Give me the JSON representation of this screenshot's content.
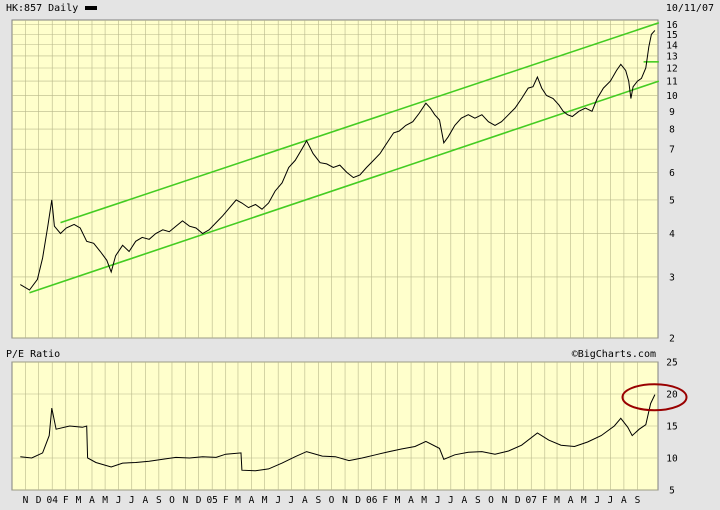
{
  "chart_data": [
    {
      "type": "line",
      "title": "HK:857 Daily",
      "date_label": "10/11/07",
      "y_scale": "log",
      "ylim": [
        2,
        16.5
      ],
      "y_ticks": [
        2,
        3,
        4,
        5,
        6,
        7,
        8,
        9,
        10,
        11,
        12,
        13,
        14,
        15,
        16
      ],
      "y_tick_labels": [
        "2",
        "3",
        "4",
        "5",
        "6",
        "7",
        "8",
        "9",
        "10",
        "11",
        "12",
        "13",
        "14",
        "15",
        "16"
      ],
      "grid": true,
      "colors": {
        "plot_bg": "#ffffcc",
        "grid": "#b7b78a",
        "price": "#000000",
        "channel": "#44cc22"
      },
      "series": [
        {
          "name": "HK:857",
          "points": [
            [
              "2003-10-20",
              2.85
            ],
            [
              "2003-11-10",
              2.75
            ],
            [
              "2003-11-28",
              2.95
            ],
            [
              "2003-12-10",
              3.4
            ],
            [
              "2003-12-22",
              4.2
            ],
            [
              "2003-12-31",
              5.0
            ],
            [
              "2004-01-06",
              4.2
            ],
            [
              "2004-01-20",
              4.0
            ],
            [
              "2004-02-02",
              4.15
            ],
            [
              "2004-02-20",
              4.25
            ],
            [
              "2004-03-05",
              4.15
            ],
            [
              "2004-03-20",
              3.8
            ],
            [
              "2004-04-05",
              3.75
            ],
            [
              "2004-04-20",
              3.55
            ],
            [
              "2004-05-05",
              3.35
            ],
            [
              "2004-05-15",
              3.1
            ],
            [
              "2004-05-25",
              3.45
            ],
            [
              "2004-06-10",
              3.7
            ],
            [
              "2004-06-25",
              3.55
            ],
            [
              "2004-07-10",
              3.8
            ],
            [
              "2004-07-25",
              3.9
            ],
            [
              "2004-08-10",
              3.85
            ],
            [
              "2004-08-25",
              4.0
            ],
            [
              "2004-09-10",
              4.1
            ],
            [
              "2004-09-25",
              4.05
            ],
            [
              "2004-10-10",
              4.2
            ],
            [
              "2004-10-25",
              4.35
            ],
            [
              "2004-11-10",
              4.2
            ],
            [
              "2004-11-25",
              4.15
            ],
            [
              "2004-12-10",
              4.0
            ],
            [
              "2004-12-25",
              4.1
            ],
            [
              "2005-01-10",
              4.3
            ],
            [
              "2005-01-25",
              4.5
            ],
            [
              "2005-02-10",
              4.75
            ],
            [
              "2005-02-25",
              5.0
            ],
            [
              "2005-03-10",
              4.9
            ],
            [
              "2005-03-25",
              4.75
            ],
            [
              "2005-04-10",
              4.85
            ],
            [
              "2005-04-25",
              4.7
            ],
            [
              "2005-05-10",
              4.9
            ],
            [
              "2005-05-25",
              5.3
            ],
            [
              "2005-06-10",
              5.6
            ],
            [
              "2005-06-25",
              6.2
            ],
            [
              "2005-07-10",
              6.5
            ],
            [
              "2005-07-25",
              7.0
            ],
            [
              "2005-08-05",
              7.4
            ],
            [
              "2005-08-20",
              6.8
            ],
            [
              "2005-09-05",
              6.4
            ],
            [
              "2005-09-20",
              6.35
            ],
            [
              "2005-10-05",
              6.2
            ],
            [
              "2005-10-20",
              6.3
            ],
            [
              "2005-11-05",
              6.0
            ],
            [
              "2005-11-20",
              5.8
            ],
            [
              "2005-12-05",
              5.9
            ],
            [
              "2005-12-20",
              6.2
            ],
            [
              "2006-01-05",
              6.5
            ],
            [
              "2006-01-20",
              6.8
            ],
            [
              "2006-02-05",
              7.3
            ],
            [
              "2006-02-20",
              7.8
            ],
            [
              "2006-03-05",
              7.9
            ],
            [
              "2006-03-20",
              8.2
            ],
            [
              "2006-04-05",
              8.4
            ],
            [
              "2006-04-20",
              8.9
            ],
            [
              "2006-05-05",
              9.5
            ],
            [
              "2006-05-15",
              9.2
            ],
            [
              "2006-05-25",
              8.8
            ],
            [
              "2006-06-05",
              8.5
            ],
            [
              "2006-06-15",
              7.3
            ],
            [
              "2006-06-25",
              7.6
            ],
            [
              "2006-07-10",
              8.2
            ],
            [
              "2006-07-25",
              8.6
            ],
            [
              "2006-08-10",
              8.8
            ],
            [
              "2006-08-25",
              8.6
            ],
            [
              "2006-09-10",
              8.8
            ],
            [
              "2006-09-25",
              8.4
            ],
            [
              "2006-10-10",
              8.2
            ],
            [
              "2006-10-25",
              8.4
            ],
            [
              "2006-11-10",
              8.8
            ],
            [
              "2006-11-25",
              9.2
            ],
            [
              "2006-12-10",
              9.8
            ],
            [
              "2006-12-25",
              10.5
            ],
            [
              "2007-01-05",
              10.6
            ],
            [
              "2007-01-15",
              11.3
            ],
            [
              "2007-01-25",
              10.5
            ],
            [
              "2007-02-05",
              10.0
            ],
            [
              "2007-02-20",
              9.8
            ],
            [
              "2007-03-05",
              9.4
            ],
            [
              "2007-03-15",
              9.0
            ],
            [
              "2007-03-25",
              8.8
            ],
            [
              "2007-04-05",
              8.7
            ],
            [
              "2007-04-20",
              9.0
            ],
            [
              "2007-05-05",
              9.2
            ],
            [
              "2007-05-20",
              9.0
            ],
            [
              "2007-06-01",
              9.8
            ],
            [
              "2007-06-15",
              10.5
            ],
            [
              "2007-07-01",
              11.0
            ],
            [
              "2007-07-15",
              11.8
            ],
            [
              "2007-07-25",
              12.3
            ],
            [
              "2007-08-05",
              11.8
            ],
            [
              "2007-08-12",
              11.0
            ],
            [
              "2007-08-17",
              9.8
            ],
            [
              "2007-08-22",
              10.6
            ],
            [
              "2007-09-01",
              11.0
            ],
            [
              "2007-09-10",
              11.2
            ],
            [
              "2007-09-20",
              12.0
            ],
            [
              "2007-09-27",
              13.8
            ],
            [
              "2007-10-03",
              15.0
            ],
            [
              "2007-10-11",
              15.4
            ]
          ]
        }
      ],
      "trendlines": [
        {
          "start": [
            "2004-01-20",
            4.3
          ],
          "end": [
            "2007-10-20",
            16.2
          ]
        },
        {
          "start": [
            "2003-11-10",
            2.7
          ],
          "end": [
            "2007-10-20",
            11.0
          ]
        },
        {
          "start": [
            "2007-09-15",
            12.5
          ],
          "end": [
            "2007-10-20",
            12.5
          ]
        }
      ]
    },
    {
      "type": "line",
      "title": "P/E Ratio",
      "watermark": "©BigCharts.com",
      "ylim": [
        5,
        25
      ],
      "y_ticks": [
        5,
        10,
        15,
        20,
        25
      ],
      "y_tick_labels": [
        "5",
        "10",
        "15",
        "20",
        "25"
      ],
      "grid": true,
      "annotation": {
        "shape": "ellipse",
        "color": "#990000",
        "center": [
          "2007-10-10",
          19.5
        ]
      },
      "series": [
        {
          "name": "P/E Ratio",
          "points": [
            [
              "2003-10-20",
              10.2
            ],
            [
              "2003-11-15",
              10.0
            ],
            [
              "2003-12-10",
              10.8
            ],
            [
              "2003-12-25",
              13.5
            ],
            [
              "2003-12-31",
              17.8
            ],
            [
              "2004-01-10",
              14.5
            ],
            [
              "2004-02-10",
              15.0
            ],
            [
              "2004-03-10",
              14.8
            ],
            [
              "2004-03-20",
              15.0
            ],
            [
              "2004-03-22",
              10.0
            ],
            [
              "2004-04-10",
              9.3
            ],
            [
              "2004-05-15",
              8.6
            ],
            [
              "2004-06-10",
              9.2
            ],
            [
              "2004-07-10",
              9.3
            ],
            [
              "2004-08-10",
              9.5
            ],
            [
              "2004-09-10",
              9.8
            ],
            [
              "2004-10-10",
              10.1
            ],
            [
              "2004-11-10",
              10.0
            ],
            [
              "2004-12-10",
              10.2
            ],
            [
              "2005-01-10",
              10.1
            ],
            [
              "2005-02-01",
              10.6
            ],
            [
              "2005-03-08",
              10.8
            ],
            [
              "2005-03-10",
              8.1
            ],
            [
              "2005-04-10",
              8.0
            ],
            [
              "2005-05-10",
              8.3
            ],
            [
              "2005-06-10",
              9.2
            ],
            [
              "2005-07-10",
              10.2
            ],
            [
              "2005-08-05",
              11.0
            ],
            [
              "2005-09-10",
              10.3
            ],
            [
              "2005-10-10",
              10.2
            ],
            [
              "2005-11-10",
              9.6
            ],
            [
              "2005-12-10",
              10.0
            ],
            [
              "2006-01-10",
              10.5
            ],
            [
              "2006-02-10",
              11.0
            ],
            [
              "2006-03-10",
              11.4
            ],
            [
              "2006-04-10",
              11.8
            ],
            [
              "2006-05-05",
              12.6
            ],
            [
              "2006-06-05",
              11.5
            ],
            [
              "2006-06-15",
              9.8
            ],
            [
              "2006-07-10",
              10.5
            ],
            [
              "2006-08-10",
              10.9
            ],
            [
              "2006-09-10",
              11.0
            ],
            [
              "2006-10-10",
              10.6
            ],
            [
              "2006-11-10",
              11.1
            ],
            [
              "2006-12-10",
              12.0
            ],
            [
              "2007-01-15",
              13.9
            ],
            [
              "2007-02-10",
              12.8
            ],
            [
              "2007-03-10",
              12.0
            ],
            [
              "2007-04-10",
              11.8
            ],
            [
              "2007-05-10",
              12.5
            ],
            [
              "2007-06-10",
              13.5
            ],
            [
              "2007-07-10",
              15.0
            ],
            [
              "2007-07-25",
              16.2
            ],
            [
              "2007-08-10",
              14.8
            ],
            [
              "2007-08-20",
              13.5
            ],
            [
              "2007-09-05",
              14.5
            ],
            [
              "2007-09-20",
              15.2
            ],
            [
              "2007-10-01",
              18.5
            ],
            [
              "2007-10-11",
              19.9
            ]
          ]
        }
      ]
    }
  ],
  "x_axis": {
    "domain": [
      "2003-10-01",
      "2007-10-18"
    ],
    "month_labels": [
      {
        "date": "2003-11-01",
        "label": "N"
      },
      {
        "date": "2003-12-01",
        "label": "D"
      },
      {
        "date": "2004-01-01",
        "label": "04"
      },
      {
        "date": "2004-02-01",
        "label": "F"
      },
      {
        "date": "2004-03-01",
        "label": "M"
      },
      {
        "date": "2004-04-01",
        "label": "A"
      },
      {
        "date": "2004-05-01",
        "label": "M"
      },
      {
        "date": "2004-06-01",
        "label": "J"
      },
      {
        "date": "2004-07-01",
        "label": "J"
      },
      {
        "date": "2004-08-01",
        "label": "A"
      },
      {
        "date": "2004-09-01",
        "label": "S"
      },
      {
        "date": "2004-10-01",
        "label": "O"
      },
      {
        "date": "2004-11-01",
        "label": "N"
      },
      {
        "date": "2004-12-01",
        "label": "D"
      },
      {
        "date": "2005-01-01",
        "label": "05"
      },
      {
        "date": "2005-02-01",
        "label": "F"
      },
      {
        "date": "2005-03-01",
        "label": "M"
      },
      {
        "date": "2005-04-01",
        "label": "A"
      },
      {
        "date": "2005-05-01",
        "label": "M"
      },
      {
        "date": "2005-06-01",
        "label": "J"
      },
      {
        "date": "2005-07-01",
        "label": "J"
      },
      {
        "date": "2005-08-01",
        "label": "A"
      },
      {
        "date": "2005-09-01",
        "label": "S"
      },
      {
        "date": "2005-10-01",
        "label": "O"
      },
      {
        "date": "2005-11-01",
        "label": "N"
      },
      {
        "date": "2005-12-01",
        "label": "D"
      },
      {
        "date": "2006-01-01",
        "label": "06"
      },
      {
        "date": "2006-02-01",
        "label": "F"
      },
      {
        "date": "2006-03-01",
        "label": "M"
      },
      {
        "date": "2006-04-01",
        "label": "A"
      },
      {
        "date": "2006-05-01",
        "label": "M"
      },
      {
        "date": "2006-06-01",
        "label": "J"
      },
      {
        "date": "2006-07-01",
        "label": "J"
      },
      {
        "date": "2006-08-01",
        "label": "A"
      },
      {
        "date": "2006-09-01",
        "label": "S"
      },
      {
        "date": "2006-10-01",
        "label": "O"
      },
      {
        "date": "2006-11-01",
        "label": "N"
      },
      {
        "date": "2006-12-01",
        "label": "D"
      },
      {
        "date": "2007-01-01",
        "label": "07"
      },
      {
        "date": "2007-02-01",
        "label": "F"
      },
      {
        "date": "2007-03-01",
        "label": "M"
      },
      {
        "date": "2007-04-01",
        "label": "A"
      },
      {
        "date": "2007-05-01",
        "label": "M"
      },
      {
        "date": "2007-06-01",
        "label": "J"
      },
      {
        "date": "2007-07-01",
        "label": "J"
      },
      {
        "date": "2007-08-01",
        "label": "A"
      },
      {
        "date": "2007-09-01",
        "label": "S"
      }
    ]
  }
}
